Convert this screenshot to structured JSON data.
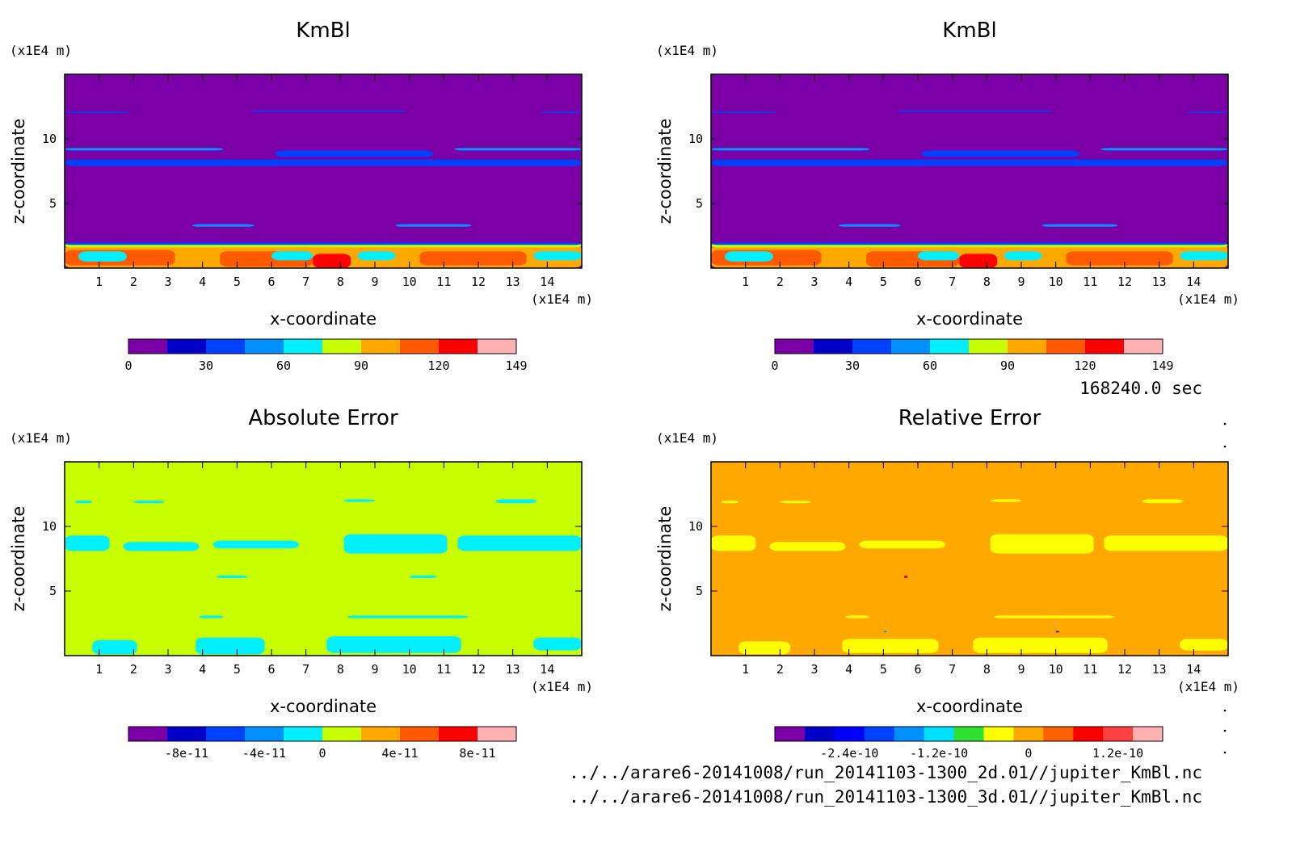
{
  "palette_main": [
    "#7b00a8",
    "#0000c8",
    "#0040ff",
    "#0090ff",
    "#00f0ff",
    "#c8ff00",
    "#ffa800",
    "#ff5a00",
    "#ff0000",
    "#ffb0b0"
  ],
  "palette_rel": [
    "#7b00a8",
    "#0000c8",
    "#0000ff",
    "#0040ff",
    "#0090ff",
    "#00e0ff",
    "#30e030",
    "#ffff00",
    "#ffa800",
    "#ff6000",
    "#ff0000",
    "#ff4040",
    "#ffb0b0"
  ],
  "time_label": "168240.0 sec",
  "file_lines": [
    "../../arare6-20141008/run_20141103-1300_2d.01//jupiter_KmBl.nc",
    "../../arare6-20141008/run_20141103-1300_3d.01//jupiter_KmBl.nc"
  ],
  "chart_data": [
    {
      "type": "heatmap",
      "title": "KmBl",
      "xlabel": "x-coordinate",
      "ylabel": "z-coordinate",
      "xunit": "(x1E4 m)",
      "yunit": "(x1E4 m)",
      "xlim": [
        0,
        15
      ],
      "ylim": [
        0,
        15
      ],
      "xticks": [
        "1",
        "2",
        "3",
        "4",
        "5",
        "6",
        "7",
        "8",
        "9",
        "10",
        "11",
        "12",
        "13",
        "14"
      ],
      "yticks": [
        "5",
        "10"
      ],
      "colorbar": {
        "ticks": [
          "0",
          "30",
          "60",
          "90",
          "120",
          "149"
        ],
        "levels": 10
      },
      "background_level": 0,
      "regions": [
        {
          "x": [
            0,
            15
          ],
          "z": [
            0,
            1.8
          ],
          "level": 6
        },
        {
          "x": [
            0,
            3.2
          ],
          "z": [
            0.2,
            1.4
          ],
          "level": 7
        },
        {
          "x": [
            4.5,
            7.2
          ],
          "z": [
            0.1,
            1.3
          ],
          "level": 7
        },
        {
          "x": [
            7.2,
            8.3
          ],
          "z": [
            0,
            1.1
          ],
          "level": 8
        },
        {
          "x": [
            10.3,
            13.4
          ],
          "z": [
            0.2,
            1.3
          ],
          "level": 7
        },
        {
          "x": [
            0.4,
            1.8
          ],
          "z": [
            0.5,
            1.3
          ],
          "level": 4
        },
        {
          "x": [
            6,
            7.2
          ],
          "z": [
            0.6,
            1.3
          ],
          "level": 4
        },
        {
          "x": [
            8.5,
            9.6
          ],
          "z": [
            0.6,
            1.3
          ],
          "level": 4
        },
        {
          "x": [
            13.6,
            15
          ],
          "z": [
            0.6,
            1.3
          ],
          "level": 4
        },
        {
          "x": [
            0,
            15
          ],
          "z": [
            1.6,
            1.9
          ],
          "level": 5
        },
        {
          "x": [
            0,
            15
          ],
          "z": [
            1.8,
            2
          ],
          "level": 2
        },
        {
          "x": [
            3.7,
            5.5
          ],
          "z": [
            3.2,
            3.4
          ],
          "level": 3
        },
        {
          "x": [
            9.6,
            11.8
          ],
          "z": [
            3.2,
            3.4
          ],
          "level": 3
        },
        {
          "x": [
            0,
            15
          ],
          "z": [
            7.9,
            8.4
          ],
          "level": 2
        },
        {
          "x": [
            0,
            4.6
          ],
          "z": [
            9.1,
            9.3
          ],
          "level": 3
        },
        {
          "x": [
            6.1,
            10.7
          ],
          "z": [
            8.6,
            9.1
          ],
          "level": 2
        },
        {
          "x": [
            11.3,
            15
          ],
          "z": [
            9.1,
            9.3
          ],
          "level": 3
        },
        {
          "x": [
            0,
            1.9
          ],
          "z": [
            12,
            12.1
          ],
          "level": 2
        },
        {
          "x": [
            5.4,
            9.9
          ],
          "z": [
            12.1,
            12.2
          ],
          "level": 2
        },
        {
          "x": [
            13.8,
            15
          ],
          "z": [
            12,
            12.1
          ],
          "level": 2
        }
      ]
    },
    {
      "type": "heatmap",
      "title": "KmBl",
      "xlabel": "x-coordinate",
      "ylabel": "z-coordinate",
      "xunit": "(x1E4 m)",
      "yunit": "(x1E4 m)",
      "xlim": [
        0,
        15
      ],
      "ylim": [
        0,
        15
      ],
      "xticks": [
        "1",
        "2",
        "3",
        "4",
        "5",
        "6",
        "7",
        "8",
        "9",
        "10",
        "11",
        "12",
        "13",
        "14"
      ],
      "yticks": [
        "5",
        "10"
      ],
      "colorbar": {
        "ticks": [
          "0",
          "30",
          "60",
          "90",
          "120",
          "149"
        ],
        "levels": 10
      },
      "background_level": 0,
      "regions": [
        {
          "x": [
            0,
            15
          ],
          "z": [
            0,
            1.8
          ],
          "level": 6
        },
        {
          "x": [
            0,
            3.2
          ],
          "z": [
            0.2,
            1.4
          ],
          "level": 7
        },
        {
          "x": [
            4.5,
            7.2
          ],
          "z": [
            0.1,
            1.3
          ],
          "level": 7
        },
        {
          "x": [
            7.2,
            8.3
          ],
          "z": [
            0,
            1.1
          ],
          "level": 8
        },
        {
          "x": [
            10.3,
            13.4
          ],
          "z": [
            0.2,
            1.3
          ],
          "level": 7
        },
        {
          "x": [
            0.4,
            1.8
          ],
          "z": [
            0.5,
            1.3
          ],
          "level": 4
        },
        {
          "x": [
            6,
            7.2
          ],
          "z": [
            0.6,
            1.3
          ],
          "level": 4
        },
        {
          "x": [
            8.5,
            9.6
          ],
          "z": [
            0.6,
            1.3
          ],
          "level": 4
        },
        {
          "x": [
            13.6,
            15
          ],
          "z": [
            0.6,
            1.3
          ],
          "level": 4
        },
        {
          "x": [
            0,
            15
          ],
          "z": [
            1.6,
            1.9
          ],
          "level": 5
        },
        {
          "x": [
            0,
            15
          ],
          "z": [
            1.8,
            2
          ],
          "level": 2
        },
        {
          "x": [
            3.7,
            5.5
          ],
          "z": [
            3.2,
            3.4
          ],
          "level": 3
        },
        {
          "x": [
            9.6,
            11.8
          ],
          "z": [
            3.2,
            3.4
          ],
          "level": 3
        },
        {
          "x": [
            0,
            15
          ],
          "z": [
            7.9,
            8.4
          ],
          "level": 2
        },
        {
          "x": [
            0,
            4.6
          ],
          "z": [
            9.1,
            9.3
          ],
          "level": 3
        },
        {
          "x": [
            6.1,
            10.7
          ],
          "z": [
            8.6,
            9.1
          ],
          "level": 2
        },
        {
          "x": [
            11.3,
            15
          ],
          "z": [
            9.1,
            9.3
          ],
          "level": 3
        },
        {
          "x": [
            0,
            1.9
          ],
          "z": [
            12,
            12.1
          ],
          "level": 2
        },
        {
          "x": [
            5.4,
            9.9
          ],
          "z": [
            12.1,
            12.2
          ],
          "level": 2
        },
        {
          "x": [
            13.8,
            15
          ],
          "z": [
            12,
            12.1
          ],
          "level": 2
        }
      ]
    },
    {
      "type": "heatmap",
      "title": "Absolute Error",
      "xlabel": "x-coordinate",
      "ylabel": "z-coordinate",
      "xunit": "(x1E4 m)",
      "yunit": "(x1E4 m)",
      "xlim": [
        0,
        15
      ],
      "ylim": [
        0,
        15
      ],
      "xticks": [
        "1",
        "2",
        "3",
        "4",
        "5",
        "6",
        "7",
        "8",
        "9",
        "10",
        "11",
        "12",
        "13",
        "14"
      ],
      "yticks": [
        "5",
        "10"
      ],
      "colorbar": {
        "ticks": [
          "-8e-11",
          "-4e-11",
          "0",
          "4e-11",
          "8e-11"
        ],
        "levels": 10
      },
      "background_level": 5,
      "regions": [
        {
          "x": [
            0.8,
            2.1
          ],
          "z": [
            0.1,
            1.2
          ],
          "level": 4
        },
        {
          "x": [
            3.8,
            5.8
          ],
          "z": [
            0.1,
            1.4
          ],
          "level": 4
        },
        {
          "x": [
            7.6,
            11.5
          ],
          "z": [
            0.2,
            1.5
          ],
          "level": 4
        },
        {
          "x": [
            13.6,
            15
          ],
          "z": [
            0.4,
            1.4
          ],
          "level": 4
        },
        {
          "x": [
            3.9,
            4.6
          ],
          "z": [
            2.9,
            3.1
          ],
          "level": 4
        },
        {
          "x": [
            8.2,
            11.7
          ],
          "z": [
            2.9,
            3.1
          ],
          "level": 4
        },
        {
          "x": [
            4.4,
            5.3
          ],
          "z": [
            6,
            6.2
          ],
          "level": 4
        },
        {
          "x": [
            10,
            10.8
          ],
          "z": [
            6,
            6.2
          ],
          "level": 4
        },
        {
          "x": [
            0,
            1.3
          ],
          "z": [
            8.1,
            9.3
          ],
          "level": 4
        },
        {
          "x": [
            1.7,
            3.9
          ],
          "z": [
            8.1,
            8.8
          ],
          "level": 4
        },
        {
          "x": [
            4.3,
            6.8
          ],
          "z": [
            8.3,
            8.9
          ],
          "level": 4
        },
        {
          "x": [
            8.1,
            11.1
          ],
          "z": [
            7.9,
            9.4
          ],
          "level": 4
        },
        {
          "x": [
            11.4,
            15
          ],
          "z": [
            8.1,
            9.3
          ],
          "level": 4
        },
        {
          "x": [
            0.3,
            0.8
          ],
          "z": [
            11.8,
            12
          ],
          "level": 4
        },
        {
          "x": [
            2,
            2.9
          ],
          "z": [
            11.8,
            12
          ],
          "level": 4
        },
        {
          "x": [
            8.1,
            9
          ],
          "z": [
            11.9,
            12.1
          ],
          "level": 4
        },
        {
          "x": [
            12.5,
            13.7
          ],
          "z": [
            11.8,
            12.1
          ],
          "level": 4
        }
      ]
    },
    {
      "type": "heatmap",
      "title": "Relative Error",
      "xlabel": "x-coordinate",
      "ylabel": "z-coordinate",
      "xunit": "(x1E4 m)",
      "yunit": "(x1E4 m)",
      "xlim": [
        0,
        15
      ],
      "ylim": [
        0,
        15
      ],
      "xticks": [
        "1",
        "2",
        "3",
        "4",
        "5",
        "6",
        "7",
        "8",
        "9",
        "10",
        "11",
        "12",
        "13",
        "14"
      ],
      "yticks": [
        "5",
        "10"
      ],
      "colorbar": {
        "ticks": [
          "-2.4e-10",
          "-1.2e-10",
          "0",
          "1.2e-10"
        ],
        "levels": 13
      },
      "background_level": 8,
      "regions": [
        {
          "x": [
            0.8,
            2.3
          ],
          "z": [
            0.1,
            1.1
          ],
          "level": 7
        },
        {
          "x": [
            3.8,
            6.6
          ],
          "z": [
            0.2,
            1.3
          ],
          "level": 7
        },
        {
          "x": [
            7.6,
            11.5
          ],
          "z": [
            0.2,
            1.4
          ],
          "level": 7
        },
        {
          "x": [
            13.6,
            15
          ],
          "z": [
            0.4,
            1.3
          ],
          "level": 7
        },
        {
          "x": [
            5,
            5.1
          ],
          "z": [
            1.8,
            1.9
          ],
          "level": 4
        },
        {
          "x": [
            10,
            10.1
          ],
          "z": [
            1.8,
            1.9
          ],
          "level": 2
        },
        {
          "x": [
            3.9,
            4.6
          ],
          "z": [
            2.9,
            3.1
          ],
          "level": 7
        },
        {
          "x": [
            8.2,
            11.7
          ],
          "z": [
            2.9,
            3.1
          ],
          "level": 7
        },
        {
          "x": [
            5.6,
            5.7
          ],
          "z": [
            6,
            6.2
          ],
          "level": 10
        },
        {
          "x": [
            0,
            1.3
          ],
          "z": [
            8.1,
            9.3
          ],
          "level": 7
        },
        {
          "x": [
            1.7,
            3.9
          ],
          "z": [
            8.1,
            8.8
          ],
          "level": 7
        },
        {
          "x": [
            4.3,
            6.8
          ],
          "z": [
            8.3,
            8.9
          ],
          "level": 7
        },
        {
          "x": [
            8.1,
            11.1
          ],
          "z": [
            7.9,
            9.4
          ],
          "level": 7
        },
        {
          "x": [
            11.4,
            15
          ],
          "z": [
            8.1,
            9.3
          ],
          "level": 7
        },
        {
          "x": [
            0.3,
            0.8
          ],
          "z": [
            11.8,
            12
          ],
          "level": 7
        },
        {
          "x": [
            2,
            2.9
          ],
          "z": [
            11.8,
            12
          ],
          "level": 7
        },
        {
          "x": [
            8.1,
            9
          ],
          "z": [
            11.9,
            12.1
          ],
          "level": 7
        },
        {
          "x": [
            12.5,
            13.7
          ],
          "z": [
            11.8,
            12.1
          ],
          "level": 7
        }
      ]
    }
  ]
}
